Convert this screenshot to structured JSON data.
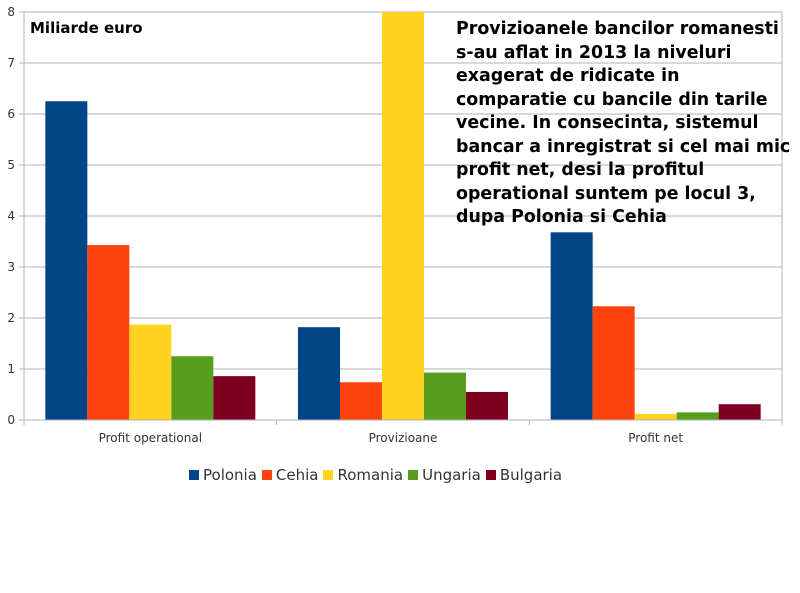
{
  "chart_data": {
    "type": "bar",
    "unit_label": "Miliarde euro",
    "annotation": "Provizioanele bancilor romanesti s-au aflat in 2013 la niveluri exagerat de ridicate in comparatie cu bancile din tarile vecine. In consecinta, sistemul bancar a inregistrat si cel mai mic profit net, desi la profitul operational suntem pe locul 3, dupa Polonia si Cehia",
    "categories": [
      "Profit operational",
      "Provizioane",
      "Profit net"
    ],
    "series": [
      {
        "name": "Polonia",
        "color": "#004586",
        "values": [
          6.25,
          1.82,
          3.68
        ]
      },
      {
        "name": "Cehia",
        "color": "#ff420e",
        "values": [
          3.43,
          0.74,
          2.23
        ]
      },
      {
        "name": "Romania",
        "color": "#ffd320",
        "values": [
          1.87,
          8.0,
          0.12
        ]
      },
      {
        "name": "Ungaria",
        "color": "#579d1c",
        "values": [
          1.25,
          0.93,
          0.15
        ]
      },
      {
        "name": "Bulgaria",
        "color": "#7e0021",
        "values": [
          0.86,
          0.55,
          0.31
        ]
      }
    ],
    "ylim": [
      0,
      8
    ],
    "yticks": [
      "0",
      "1",
      "2",
      "3",
      "4",
      "5",
      "6",
      "7",
      "8"
    ],
    "grid": true,
    "legend_position": "bottom"
  }
}
